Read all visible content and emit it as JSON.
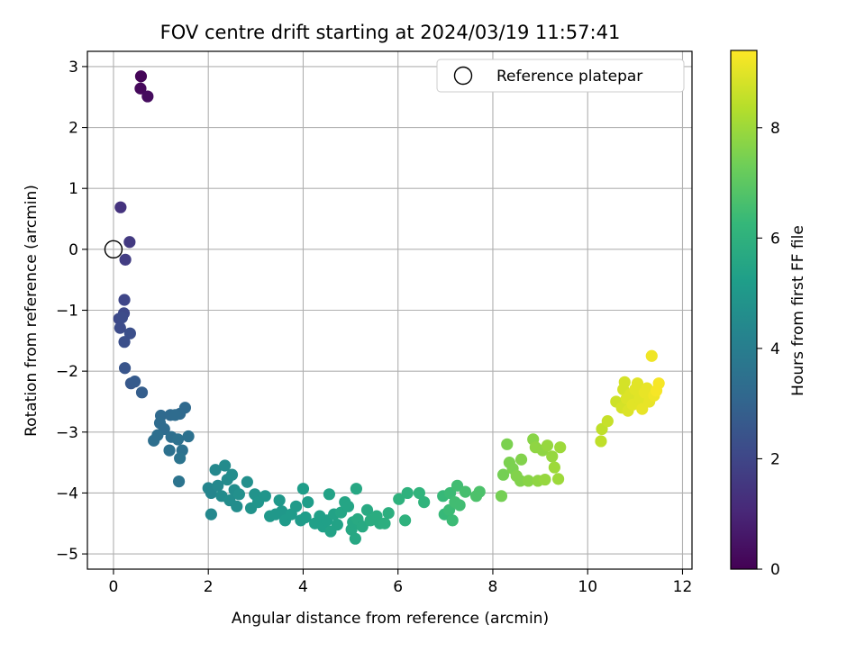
{
  "chart_data": {
    "type": "scatter",
    "title": "FOV centre drift starting at 2024/03/19 11:57:41",
    "xlabel": "Angular distance from reference (arcmin)",
    "ylabel": "Rotation from reference (arcmin)",
    "xlim": [
      -0.55,
      12.2
    ],
    "ylim": [
      -5.25,
      3.25
    ],
    "x_ticks": [
      0,
      2,
      4,
      6,
      8,
      10,
      12
    ],
    "y_ticks": [
      -5,
      -4,
      -3,
      -2,
      -1,
      0,
      1,
      2,
      3
    ],
    "grid": true,
    "legend": {
      "placement": "top-right",
      "entries": [
        "Reference platepar"
      ]
    },
    "reference_point": {
      "label": "Reference platepar",
      "x": 0,
      "y": 0,
      "marker": "open-circle"
    },
    "colorbar": {
      "label": "Hours from first FF file",
      "colormap": "viridis",
      "range": [
        0,
        9.4
      ],
      "ticks": [
        0,
        2,
        4,
        6,
        8
      ]
    },
    "colormap_stops": [
      "#440154",
      "#482878",
      "#3e4989",
      "#31688e",
      "#26828e",
      "#1f9e89",
      "#35b779",
      "#6ece58",
      "#b5de2b",
      "#fde725"
    ],
    "points": [
      {
        "x": 0.58,
        "y": 2.84,
        "h": 0.1
      },
      {
        "x": 0.57,
        "y": 2.64,
        "h": 0.2
      },
      {
        "x": 0.72,
        "y": 2.51,
        "h": 0.3
      },
      {
        "x": 0.15,
        "y": 0.69,
        "h": 1.4
      },
      {
        "x": 0.34,
        "y": 0.12,
        "h": 1.6
      },
      {
        "x": 0.25,
        "y": -0.17,
        "h": 1.7
      },
      {
        "x": 0.23,
        "y": -0.83,
        "h": 2.0
      },
      {
        "x": 0.22,
        "y": -1.05,
        "h": 2.1
      },
      {
        "x": 0.12,
        "y": -1.14,
        "h": 2.1
      },
      {
        "x": 0.18,
        "y": -1.12,
        "h": 2.2
      },
      {
        "x": 0.14,
        "y": -1.29,
        "h": 2.2
      },
      {
        "x": 0.35,
        "y": -1.38,
        "h": 2.3
      },
      {
        "x": 0.23,
        "y": -1.52,
        "h": 2.3
      },
      {
        "x": 0.24,
        "y": -1.95,
        "h": 2.5
      },
      {
        "x": 0.37,
        "y": -2.2,
        "h": 2.6
      },
      {
        "x": 0.45,
        "y": -2.17,
        "h": 2.7
      },
      {
        "x": 0.6,
        "y": -2.35,
        "h": 2.8
      },
      {
        "x": 1.51,
        "y": -2.6,
        "h": 3.2
      },
      {
        "x": 1.4,
        "y": -2.7,
        "h": 3.2
      },
      {
        "x": 1.0,
        "y": -2.73,
        "h": 3.2
      },
      {
        "x": 1.2,
        "y": -2.72,
        "h": 3.2
      },
      {
        "x": 0.98,
        "y": -2.85,
        "h": 3.3
      },
      {
        "x": 1.07,
        "y": -2.95,
        "h": 3.3
      },
      {
        "x": 1.3,
        "y": -2.72,
        "h": 3.3
      },
      {
        "x": 0.93,
        "y": -3.05,
        "h": 3.4
      },
      {
        "x": 0.85,
        "y": -3.14,
        "h": 3.4
      },
      {
        "x": 1.22,
        "y": -3.08,
        "h": 3.4
      },
      {
        "x": 1.36,
        "y": -3.12,
        "h": 3.5
      },
      {
        "x": 1.58,
        "y": -3.07,
        "h": 3.5
      },
      {
        "x": 1.45,
        "y": -3.3,
        "h": 3.5
      },
      {
        "x": 1.18,
        "y": -3.3,
        "h": 3.5
      },
      {
        "x": 1.4,
        "y": -3.43,
        "h": 3.6
      },
      {
        "x": 1.38,
        "y": -3.81,
        "h": 3.6
      },
      {
        "x": 2.0,
        "y": -3.92,
        "h": 4.3
      },
      {
        "x": 2.06,
        "y": -4.0,
        "h": 4.3
      },
      {
        "x": 2.06,
        "y": -4.35,
        "h": 4.4
      },
      {
        "x": 2.15,
        "y": -3.62,
        "h": 4.4
      },
      {
        "x": 2.2,
        "y": -3.88,
        "h": 4.4
      },
      {
        "x": 2.28,
        "y": -4.05,
        "h": 4.5
      },
      {
        "x": 2.35,
        "y": -3.55,
        "h": 4.5
      },
      {
        "x": 2.4,
        "y": -3.78,
        "h": 4.5
      },
      {
        "x": 2.45,
        "y": -4.12,
        "h": 4.6
      },
      {
        "x": 2.5,
        "y": -3.7,
        "h": 4.6
      },
      {
        "x": 2.55,
        "y": -3.95,
        "h": 4.6
      },
      {
        "x": 2.6,
        "y": -4.22,
        "h": 4.6
      },
      {
        "x": 2.65,
        "y": -4.02,
        "h": 4.7
      },
      {
        "x": 2.82,
        "y": -3.82,
        "h": 4.7
      },
      {
        "x": 2.9,
        "y": -4.25,
        "h": 4.8
      },
      {
        "x": 2.98,
        "y": -4.02,
        "h": 4.8
      },
      {
        "x": 3.05,
        "y": -4.15,
        "h": 4.9
      },
      {
        "x": 3.2,
        "y": -4.05,
        "h": 4.9
      },
      {
        "x": 3.3,
        "y": -4.38,
        "h": 5.0
      },
      {
        "x": 3.42,
        "y": -4.35,
        "h": 5.0
      },
      {
        "x": 3.5,
        "y": -4.12,
        "h": 5.0
      },
      {
        "x": 3.55,
        "y": -4.3,
        "h": 5.0
      },
      {
        "x": 3.62,
        "y": -4.45,
        "h": 5.1
      },
      {
        "x": 3.75,
        "y": -4.35,
        "h": 5.1
      },
      {
        "x": 3.85,
        "y": -4.22,
        "h": 5.1
      },
      {
        "x": 3.95,
        "y": -4.45,
        "h": 5.1
      },
      {
        "x": 4.0,
        "y": -3.93,
        "h": 5.2
      },
      {
        "x": 4.05,
        "y": -4.4,
        "h": 5.2
      },
      {
        "x": 4.1,
        "y": -4.15,
        "h": 5.2
      },
      {
        "x": 4.25,
        "y": -4.5,
        "h": 5.3
      },
      {
        "x": 4.35,
        "y": -4.38,
        "h": 5.3
      },
      {
        "x": 4.42,
        "y": -4.55,
        "h": 5.3
      },
      {
        "x": 4.5,
        "y": -4.45,
        "h": 5.3
      },
      {
        "x": 4.55,
        "y": -4.02,
        "h": 5.4
      },
      {
        "x": 4.58,
        "y": -4.63,
        "h": 5.4
      },
      {
        "x": 4.65,
        "y": -4.35,
        "h": 5.4
      },
      {
        "x": 4.72,
        "y": -4.52,
        "h": 5.4
      },
      {
        "x": 4.8,
        "y": -4.32,
        "h": 5.5
      },
      {
        "x": 4.88,
        "y": -4.15,
        "h": 5.5
      },
      {
        "x": 4.95,
        "y": -4.22,
        "h": 5.5
      },
      {
        "x": 5.02,
        "y": -4.6,
        "h": 5.6
      },
      {
        "x": 5.05,
        "y": -4.48,
        "h": 5.6
      },
      {
        "x": 5.1,
        "y": -4.75,
        "h": 5.6
      },
      {
        "x": 5.12,
        "y": -3.93,
        "h": 5.6
      },
      {
        "x": 5.15,
        "y": -4.43,
        "h": 5.7
      },
      {
        "x": 5.25,
        "y": -4.55,
        "h": 5.7
      },
      {
        "x": 5.35,
        "y": -4.28,
        "h": 5.7
      },
      {
        "x": 5.42,
        "y": -4.45,
        "h": 5.8
      },
      {
        "x": 5.55,
        "y": -4.38,
        "h": 5.8
      },
      {
        "x": 5.62,
        "y": -4.5,
        "h": 5.8
      },
      {
        "x": 5.72,
        "y": -4.5,
        "h": 5.9
      },
      {
        "x": 5.8,
        "y": -4.33,
        "h": 5.9
      },
      {
        "x": 6.02,
        "y": -4.1,
        "h": 6.0
      },
      {
        "x": 6.15,
        "y": -4.45,
        "h": 6.0
      },
      {
        "x": 6.2,
        "y": -4.0,
        "h": 6.0
      },
      {
        "x": 6.45,
        "y": -4.0,
        "h": 6.1
      },
      {
        "x": 6.55,
        "y": -4.15,
        "h": 6.1
      },
      {
        "x": 6.95,
        "y": -4.05,
        "h": 6.3
      },
      {
        "x": 6.98,
        "y": -4.35,
        "h": 6.3
      },
      {
        "x": 7.08,
        "y": -4.28,
        "h": 6.4
      },
      {
        "x": 7.1,
        "y": -4.0,
        "h": 6.4
      },
      {
        "x": 7.15,
        "y": -4.45,
        "h": 6.4
      },
      {
        "x": 7.2,
        "y": -4.15,
        "h": 6.5
      },
      {
        "x": 7.25,
        "y": -3.88,
        "h": 6.5
      },
      {
        "x": 7.3,
        "y": -4.2,
        "h": 6.5
      },
      {
        "x": 7.42,
        "y": -3.98,
        "h": 6.6
      },
      {
        "x": 7.65,
        "y": -4.05,
        "h": 6.7
      },
      {
        "x": 7.72,
        "y": -3.98,
        "h": 6.7
      },
      {
        "x": 8.18,
        "y": -4.05,
        "h": 7.4
      },
      {
        "x": 8.22,
        "y": -3.7,
        "h": 7.4
      },
      {
        "x": 8.3,
        "y": -3.2,
        "h": 7.5
      },
      {
        "x": 8.35,
        "y": -3.5,
        "h": 7.5
      },
      {
        "x": 8.42,
        "y": -3.6,
        "h": 7.5
      },
      {
        "x": 8.5,
        "y": -3.72,
        "h": 7.6
      },
      {
        "x": 8.58,
        "y": -3.8,
        "h": 7.6
      },
      {
        "x": 8.6,
        "y": -3.45,
        "h": 7.6
      },
      {
        "x": 8.75,
        "y": -3.8,
        "h": 7.7
      },
      {
        "x": 8.85,
        "y": -3.12,
        "h": 7.7
      },
      {
        "x": 8.9,
        "y": -3.25,
        "h": 7.8
      },
      {
        "x": 8.95,
        "y": -3.8,
        "h": 7.8
      },
      {
        "x": 9.05,
        "y": -3.3,
        "h": 7.8
      },
      {
        "x": 9.1,
        "y": -3.78,
        "h": 7.9
      },
      {
        "x": 9.15,
        "y": -3.22,
        "h": 7.9
      },
      {
        "x": 9.25,
        "y": -3.4,
        "h": 7.9
      },
      {
        "x": 9.3,
        "y": -3.58,
        "h": 8.0
      },
      {
        "x": 9.38,
        "y": -3.77,
        "h": 8.0
      },
      {
        "x": 9.42,
        "y": -3.25,
        "h": 8.0
      },
      {
        "x": 10.28,
        "y": -3.15,
        "h": 8.5
      },
      {
        "x": 10.3,
        "y": -2.95,
        "h": 8.5
      },
      {
        "x": 10.42,
        "y": -2.82,
        "h": 8.6
      },
      {
        "x": 10.6,
        "y": -2.5,
        "h": 8.7
      },
      {
        "x": 10.72,
        "y": -2.6,
        "h": 8.8
      },
      {
        "x": 10.75,
        "y": -2.3,
        "h": 8.8
      },
      {
        "x": 10.78,
        "y": -2.18,
        "h": 8.8
      },
      {
        "x": 10.82,
        "y": -2.45,
        "h": 8.9
      },
      {
        "x": 10.85,
        "y": -2.65,
        "h": 8.9
      },
      {
        "x": 10.9,
        "y": -2.38,
        "h": 8.9
      },
      {
        "x": 10.95,
        "y": -2.55,
        "h": 9.0
      },
      {
        "x": 11.0,
        "y": -2.3,
        "h": 9.0
      },
      {
        "x": 11.05,
        "y": -2.2,
        "h": 9.0
      },
      {
        "x": 11.1,
        "y": -2.45,
        "h": 9.0
      },
      {
        "x": 11.15,
        "y": -2.62,
        "h": 9.1
      },
      {
        "x": 11.2,
        "y": -2.35,
        "h": 9.1
      },
      {
        "x": 11.25,
        "y": -2.28,
        "h": 9.1
      },
      {
        "x": 11.3,
        "y": -2.5,
        "h": 9.1
      },
      {
        "x": 11.35,
        "y": -1.75,
        "h": 9.2
      },
      {
        "x": 11.4,
        "y": -2.4,
        "h": 9.2
      },
      {
        "x": 11.45,
        "y": -2.32,
        "h": 9.3
      },
      {
        "x": 11.5,
        "y": -2.2,
        "h": 9.3
      }
    ]
  }
}
